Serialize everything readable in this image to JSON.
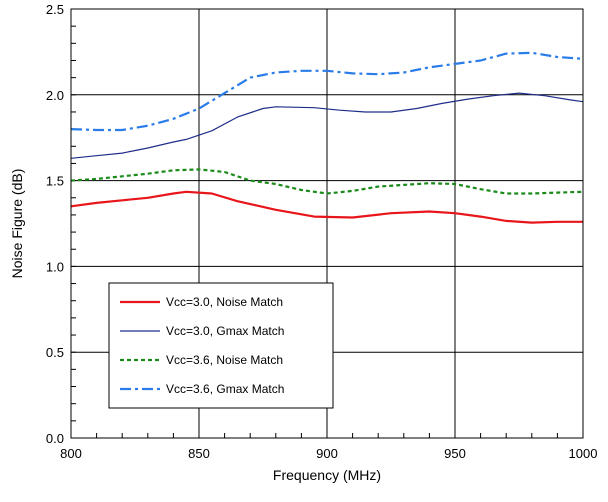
{
  "chart_data": {
    "type": "line",
    "title": "",
    "xlabel": "Frequency (MHz)",
    "ylabel": "Noise Figure (dB)",
    "xlim": [
      800,
      1000
    ],
    "ylim": [
      0.0,
      2.5
    ],
    "x_ticks": [
      800,
      850,
      900,
      950,
      1000
    ],
    "y_ticks": [
      0.0,
      0.5,
      1.0,
      1.5,
      2.0,
      2.5
    ],
    "x_tick_labels": [
      "800",
      "850",
      "900",
      "950",
      "1000"
    ],
    "y_tick_labels": [
      "0.0",
      "0.5",
      "1.0",
      "1.5",
      "2.0",
      "2.5"
    ],
    "grid": true,
    "legend_position": "bottom-left",
    "series": [
      {
        "name": "Vcc=3.0, Noise Match",
        "color": "#e8161b",
        "style": "solid",
        "x": [
          800,
          810,
          820,
          830,
          840,
          845,
          855,
          865,
          880,
          895,
          910,
          925,
          940,
          950,
          960,
          970,
          980,
          990,
          1000
        ],
        "y": [
          1.35,
          1.37,
          1.385,
          1.4,
          1.425,
          1.435,
          1.425,
          1.38,
          1.33,
          1.29,
          1.285,
          1.31,
          1.32,
          1.31,
          1.29,
          1.265,
          1.255,
          1.26,
          1.26
        ]
      },
      {
        "name": "Vcc=3.0, Gmax Match",
        "color": "#1f2d8a",
        "style": "solid",
        "x": [
          800,
          810,
          820,
          830,
          840,
          845,
          855,
          865,
          875,
          880,
          895,
          905,
          915,
          925,
          935,
          945,
          955,
          965,
          975,
          985,
          995,
          1000
        ],
        "y": [
          1.63,
          1.645,
          1.66,
          1.69,
          1.725,
          1.74,
          1.79,
          1.87,
          1.92,
          1.93,
          1.925,
          1.91,
          1.9,
          1.9,
          1.92,
          1.95,
          1.975,
          1.995,
          2.01,
          1.995,
          1.97,
          1.96
        ]
      },
      {
        "name": "Vcc=3.6, Noise Match",
        "color": "#1a8a1a",
        "style": "dotted",
        "x": [
          800,
          810,
          820,
          830,
          840,
          850,
          860,
          870,
          880,
          890,
          900,
          910,
          920,
          930,
          940,
          950,
          960,
          970,
          980,
          990,
          1000
        ],
        "y": [
          1.5,
          1.51,
          1.525,
          1.54,
          1.56,
          1.565,
          1.55,
          1.5,
          1.48,
          1.445,
          1.425,
          1.44,
          1.465,
          1.475,
          1.485,
          1.48,
          1.45,
          1.425,
          1.425,
          1.43,
          1.435
        ]
      },
      {
        "name": "Vcc=3.6, Gmax Match",
        "color": "#2a7ce8",
        "style": "dashdot",
        "x": [
          800,
          810,
          820,
          830,
          840,
          850,
          860,
          870,
          880,
          890,
          900,
          910,
          920,
          930,
          940,
          950,
          960,
          970,
          980,
          990,
          1000
        ],
        "y": [
          1.8,
          1.795,
          1.795,
          1.82,
          1.86,
          1.92,
          2.01,
          2.1,
          2.13,
          2.14,
          2.14,
          2.125,
          2.12,
          2.13,
          2.16,
          2.18,
          2.2,
          2.24,
          2.245,
          2.22,
          2.21
        ]
      }
    ]
  }
}
